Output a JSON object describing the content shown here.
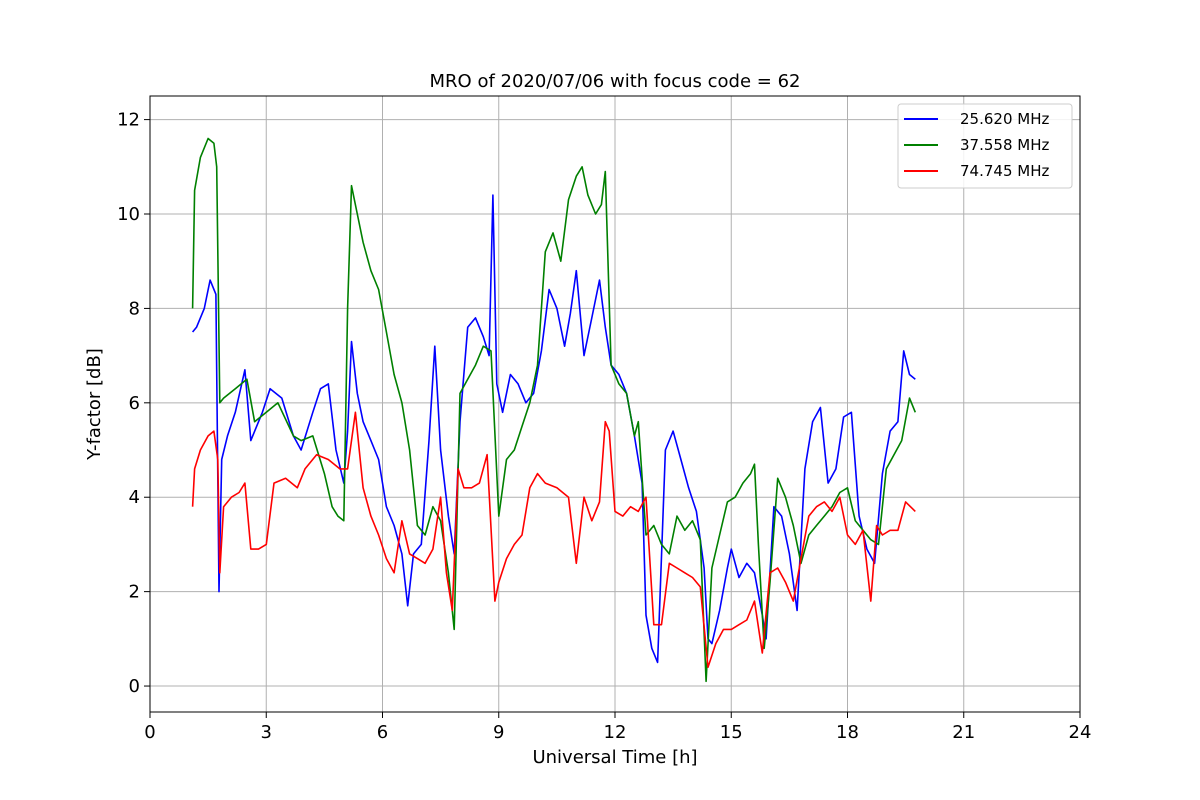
{
  "chart_data": {
    "type": "line",
    "title": "MRO of 2020/07/06 with focus code = 62",
    "xlabel": "Universal Time [h]",
    "ylabel": "Y-factor [dB]",
    "xlim": [
      0,
      24
    ],
    "ylim": [
      -0.55,
      12.5
    ],
    "xticks": [
      0,
      3,
      6,
      9,
      12,
      15,
      18,
      21,
      24
    ],
    "yticks": [
      0,
      2,
      4,
      6,
      8,
      10,
      12
    ],
    "grid": true,
    "legend_position": "top-right",
    "series": [
      {
        "name": "25.620 MHz",
        "color": "#0000ff",
        "x": [
          1.1,
          1.2,
          1.4,
          1.55,
          1.7,
          1.78,
          1.85,
          2.0,
          2.2,
          2.45,
          2.6,
          2.9,
          3.1,
          3.4,
          3.7,
          3.9,
          4.2,
          4.4,
          4.6,
          4.8,
          5.0,
          5.1,
          5.2,
          5.35,
          5.5,
          5.7,
          5.9,
          6.1,
          6.3,
          6.5,
          6.65,
          6.8,
          7.0,
          7.2,
          7.35,
          7.5,
          7.7,
          7.85,
          8.0,
          8.2,
          8.4,
          8.6,
          8.75,
          8.85,
          8.95,
          9.1,
          9.3,
          9.5,
          9.7,
          9.9,
          10.1,
          10.3,
          10.5,
          10.7,
          10.85,
          11.0,
          11.2,
          11.4,
          11.6,
          11.75,
          11.9,
          12.1,
          12.3,
          12.5,
          12.7,
          12.8,
          12.95,
          13.1,
          13.3,
          13.5,
          13.7,
          13.9,
          14.1,
          14.3,
          14.4,
          14.5,
          14.7,
          14.9,
          15.0,
          15.2,
          15.4,
          15.6,
          15.8,
          15.9,
          16.1,
          16.3,
          16.5,
          16.7,
          16.9,
          17.1,
          17.3,
          17.5,
          17.7,
          17.9,
          18.1,
          18.3,
          18.5,
          18.7,
          18.9,
          19.1,
          19.3,
          19.45,
          19.6,
          19.75
        ],
        "y": [
          7.5,
          7.6,
          8.0,
          8.6,
          8.3,
          2.0,
          4.8,
          5.3,
          5.8,
          6.7,
          5.2,
          5.8,
          6.3,
          6.1,
          5.3,
          5.0,
          5.8,
          6.3,
          6.4,
          5.0,
          4.3,
          5.4,
          7.3,
          6.2,
          5.6,
          5.2,
          4.8,
          3.8,
          3.4,
          2.8,
          1.7,
          2.8,
          3.0,
          5.2,
          7.2,
          5.0,
          3.6,
          2.8,
          5.6,
          7.6,
          7.8,
          7.4,
          7.0,
          10.4,
          6.4,
          5.8,
          6.6,
          6.4,
          6.0,
          6.2,
          7.1,
          8.4,
          8.0,
          7.2,
          7.9,
          8.8,
          7.0,
          7.8,
          8.6,
          7.6,
          6.8,
          6.6,
          6.2,
          5.3,
          4.3,
          1.5,
          0.8,
          0.5,
          5.0,
          5.4,
          4.8,
          4.2,
          3.7,
          2.5,
          1.0,
          0.9,
          1.6,
          2.5,
          2.9,
          2.3,
          2.6,
          2.4,
          1.5,
          1.0,
          3.8,
          3.6,
          2.8,
          1.6,
          4.6,
          5.6,
          5.9,
          4.3,
          4.6,
          5.7,
          5.8,
          3.6,
          2.9,
          2.6,
          4.5,
          5.4,
          5.6,
          7.1,
          6.6,
          6.5
        ]
      },
      {
        "name": "37.558 MHz",
        "color": "#008000",
        "x": [
          1.1,
          1.15,
          1.3,
          1.5,
          1.65,
          1.72,
          1.8,
          1.9,
          2.2,
          2.5,
          2.7,
          3.0,
          3.3,
          3.7,
          3.9,
          4.2,
          4.5,
          4.7,
          4.85,
          5.0,
          5.1,
          5.2,
          5.35,
          5.5,
          5.7,
          5.9,
          6.1,
          6.3,
          6.5,
          6.7,
          6.9,
          7.1,
          7.3,
          7.5,
          7.7,
          7.85,
          8.0,
          8.2,
          8.4,
          8.6,
          8.8,
          9.0,
          9.2,
          9.4,
          9.6,
          9.8,
          10.0,
          10.2,
          10.4,
          10.6,
          10.8,
          11.0,
          11.15,
          11.3,
          11.5,
          11.65,
          11.75,
          11.9,
          12.1,
          12.3,
          12.5,
          12.6,
          12.8,
          13.0,
          13.2,
          13.4,
          13.6,
          13.8,
          14.0,
          14.2,
          14.35,
          14.5,
          14.7,
          14.9,
          15.1,
          15.3,
          15.5,
          15.6,
          15.7,
          15.85,
          16.0,
          16.2,
          16.4,
          16.6,
          16.8,
          17.0,
          17.2,
          17.4,
          17.6,
          17.8,
          18.0,
          18.2,
          18.4,
          18.6,
          18.8,
          19.0,
          19.2,
          19.4,
          19.6,
          19.75
        ],
        "y": [
          8.0,
          10.5,
          11.2,
          11.6,
          11.5,
          11.0,
          6.0,
          6.1,
          6.3,
          6.5,
          5.6,
          5.8,
          6.0,
          5.3,
          5.2,
          5.3,
          4.5,
          3.8,
          3.6,
          3.5,
          8.0,
          10.6,
          10.0,
          9.4,
          8.8,
          8.4,
          7.5,
          6.6,
          6.0,
          5.0,
          3.4,
          3.2,
          3.8,
          3.5,
          2.4,
          1.2,
          6.2,
          6.5,
          6.8,
          7.2,
          7.1,
          3.6,
          4.8,
          5.0,
          5.5,
          6.0,
          6.8,
          9.2,
          9.6,
          9.0,
          10.3,
          10.8,
          11.0,
          10.4,
          10.0,
          10.2,
          10.9,
          6.8,
          6.4,
          6.2,
          5.3,
          5.6,
          3.2,
          3.4,
          3.0,
          2.8,
          3.6,
          3.3,
          3.5,
          3.1,
          0.1,
          2.5,
          3.2,
          3.9,
          4.0,
          4.3,
          4.5,
          4.7,
          3.0,
          0.8,
          2.2,
          4.4,
          4.0,
          3.4,
          2.6,
          3.2,
          3.4,
          3.6,
          3.8,
          4.1,
          4.2,
          3.5,
          3.3,
          3.1,
          3.0,
          4.6,
          4.9,
          5.2,
          6.1,
          5.8
        ]
      },
      {
        "name": "74.745 MHz",
        "color": "#ff0000",
        "x": [
          1.1,
          1.15,
          1.3,
          1.5,
          1.65,
          1.75,
          1.8,
          1.9,
          2.1,
          2.3,
          2.45,
          2.6,
          2.8,
          3.0,
          3.2,
          3.5,
          3.8,
          4.0,
          4.3,
          4.6,
          4.9,
          5.1,
          5.3,
          5.5,
          5.7,
          5.9,
          6.1,
          6.3,
          6.5,
          6.7,
          6.9,
          7.1,
          7.3,
          7.5,
          7.65,
          7.8,
          7.95,
          8.1,
          8.3,
          8.5,
          8.7,
          8.9,
          9.0,
          9.2,
          9.4,
          9.6,
          9.8,
          10.0,
          10.2,
          10.5,
          10.8,
          11.0,
          11.2,
          11.4,
          11.6,
          11.75,
          11.85,
          12.0,
          12.2,
          12.4,
          12.6,
          12.8,
          13.0,
          13.2,
          13.4,
          13.6,
          13.8,
          14.0,
          14.2,
          14.4,
          14.6,
          14.8,
          15.0,
          15.2,
          15.4,
          15.6,
          15.8,
          16.0,
          16.2,
          16.4,
          16.6,
          16.8,
          17.0,
          17.2,
          17.4,
          17.6,
          17.8,
          18.0,
          18.2,
          18.4,
          18.6,
          18.75,
          18.9,
          19.1,
          19.3,
          19.5,
          19.75
        ],
        "y": [
          3.8,
          4.6,
          5.0,
          5.3,
          5.4,
          4.8,
          2.4,
          3.8,
          4.0,
          4.1,
          4.3,
          2.9,
          2.9,
          3.0,
          4.3,
          4.4,
          4.2,
          4.6,
          4.9,
          4.8,
          4.6,
          4.6,
          5.8,
          4.2,
          3.6,
          3.2,
          2.7,
          2.4,
          3.5,
          2.8,
          2.7,
          2.6,
          2.9,
          4.0,
          2.4,
          1.6,
          4.6,
          4.2,
          4.2,
          4.3,
          4.9,
          1.8,
          2.2,
          2.7,
          3.0,
          3.2,
          4.2,
          4.5,
          4.3,
          4.2,
          4.0,
          2.6,
          4.0,
          3.5,
          3.9,
          5.6,
          5.4,
          3.7,
          3.6,
          3.8,
          3.7,
          4.0,
          1.3,
          1.3,
          2.6,
          2.5,
          2.4,
          2.3,
          2.1,
          0.4,
          0.9,
          1.2,
          1.2,
          1.3,
          1.4,
          1.8,
          0.7,
          2.4,
          2.5,
          2.2,
          1.8,
          2.7,
          3.6,
          3.8,
          3.9,
          3.7,
          4.0,
          3.2,
          3.0,
          3.3,
          1.8,
          3.4,
          3.2,
          3.3,
          3.3,
          3.9,
          3.7
        ]
      }
    ]
  }
}
